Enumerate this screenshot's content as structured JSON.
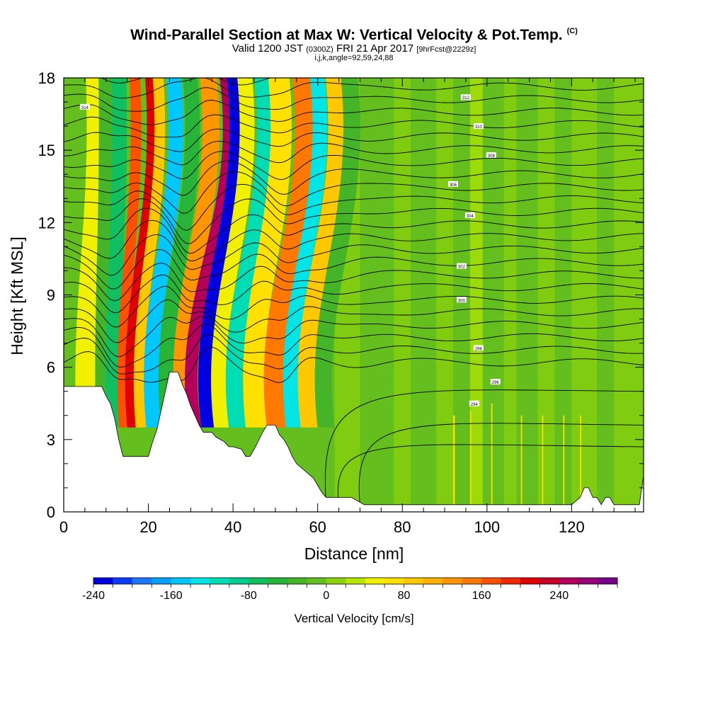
{
  "header": {
    "title": "Wind-Parallel Section at Max W: Vertical Velocity & Pot.Temp.",
    "copyright": "(C)",
    "valid_prefix": "Valid 1200 JST",
    "valid_utc": "(0300Z)",
    "valid_date": "FRI 21 Apr 2017",
    "forecast": "[9hrFcst@2229z]",
    "grid_info": "i,j,k,angle=92,59,24,88"
  },
  "chart_data": {
    "type": "heatmap",
    "title": "Wind-Parallel Section at Max W: Vertical Velocity & Pot.Temp.",
    "xlabel": "Distance [nm]",
    "ylabel": "Height [Kft MSL]",
    "xlim": [
      0,
      137
    ],
    "ylim": [
      0,
      18
    ],
    "x_ticks": [
      "0",
      "20",
      "40",
      "60",
      "80",
      "100",
      "120"
    ],
    "x_tick_values": [
      0,
      20,
      40,
      60,
      80,
      100,
      120
    ],
    "y_ticks": [
      "0",
      "3",
      "6",
      "9",
      "12",
      "15",
      "18"
    ],
    "y_tick_values": [
      0,
      3,
      6,
      9,
      12,
      15,
      18
    ],
    "colorbar": {
      "label": "Vertical Velocity [cm/s]",
      "min": -240,
      "max": 300,
      "step": 20,
      "tick_labels": [
        "-240",
        "-160",
        "-80",
        "0",
        "80",
        "160",
        "240"
      ],
      "tick_values": [
        -240,
        -160,
        -80,
        0,
        80,
        160,
        240
      ],
      "colors": [
        "#0000e0",
        "#0a3cff",
        "#1e78ff",
        "#00a0ff",
        "#00c8ff",
        "#00e6e6",
        "#00dcb4",
        "#00cc90",
        "#10c060",
        "#28b438",
        "#46b428",
        "#64be1e",
        "#8cd20a",
        "#b4e600",
        "#f0f000",
        "#ffe000",
        "#ffc800",
        "#ffb000",
        "#ff9600",
        "#ff7800",
        "#ff5000",
        "#f02800",
        "#e00000",
        "#c80028",
        "#b4005a",
        "#960078",
        "#78008c"
      ]
    },
    "terrain": [
      [
        0,
        5.2
      ],
      [
        5,
        5.2
      ],
      [
        9,
        5.2
      ],
      [
        10,
        4.8
      ],
      [
        11,
        4.5
      ],
      [
        12,
        3.9
      ],
      [
        13,
        3.0
      ],
      [
        14,
        2.3
      ],
      [
        16,
        2.3
      ],
      [
        18,
        2.3
      ],
      [
        20,
        2.3
      ],
      [
        21,
        2.9
      ],
      [
        22,
        3.4
      ],
      [
        23,
        4.2
      ],
      [
        24,
        5.0
      ],
      [
        25,
        5.8
      ],
      [
        27,
        5.8
      ],
      [
        28,
        5.3
      ],
      [
        29,
        4.9
      ],
      [
        30,
        4.4
      ],
      [
        31,
        4.0
      ],
      [
        32,
        3.6
      ],
      [
        33,
        3.3
      ],
      [
        35,
        3.3
      ],
      [
        36,
        3.1
      ],
      [
        38,
        2.9
      ],
      [
        39,
        2.7
      ],
      [
        40,
        2.7
      ],
      [
        42,
        2.6
      ],
      [
        43,
        2.3
      ],
      [
        44,
        2.3
      ],
      [
        45,
        2.6
      ],
      [
        47,
        3.3
      ],
      [
        48,
        3.6
      ],
      [
        50,
        3.6
      ],
      [
        51,
        3.2
      ],
      [
        52,
        3.0
      ],
      [
        53,
        2.7
      ],
      [
        54,
        2.3
      ],
      [
        55,
        2.0
      ],
      [
        57,
        1.7
      ],
      [
        59,
        1.4
      ],
      [
        60,
        1.1
      ],
      [
        61,
        0.8
      ],
      [
        62,
        0.6
      ],
      [
        64,
        0.6
      ],
      [
        68,
        0.6
      ],
      [
        71,
        0.3
      ],
      [
        80,
        0.3
      ],
      [
        100,
        0.3
      ],
      [
        120,
        0.3
      ],
      [
        122,
        0.6
      ],
      [
        123,
        1.0
      ],
      [
        124,
        1.0
      ],
      [
        125,
        0.6
      ],
      [
        126,
        0.6
      ],
      [
        127,
        0.3
      ],
      [
        128,
        0.6
      ],
      [
        129,
        0.6
      ],
      [
        130,
        0.3
      ],
      [
        136,
        0.3
      ],
      [
        137,
        1.5
      ]
    ],
    "w_bands": [
      {
        "x0": 3.0,
        "x1": 9.5,
        "w": 40,
        "h": 120
      },
      {
        "x0": 7.5,
        "x1": 11.0,
        "w": -40,
        "h": 40
      },
      {
        "x0": 10.0,
        "x1": 13.5,
        "w": -80,
        "h": 70
      },
      {
        "x0": 13.0,
        "x1": 15.5,
        "w": 160,
        "h": 140
      },
      {
        "x0": 15.0,
        "x1": 17.5,
        "w": 210,
        "h": 230
      },
      {
        "x0": 17.0,
        "x1": 19.5,
        "w": 80,
        "h": 220
      },
      {
        "x0": 19.5,
        "x1": 23.0,
        "w": -150,
        "h": 260
      },
      {
        "x0": 23.0,
        "x1": 26.5,
        "w": -60,
        "h": 280
      },
      {
        "x0": 26.5,
        "x1": 30.5,
        "w": 120,
        "h": 310
      },
      {
        "x0": 29.5,
        "x1": 32.5,
        "w": 250,
        "h": 400
      },
      {
        "x0": 32.5,
        "x1": 35.5,
        "w": -240,
        "h": 330
      },
      {
        "x0": 35.5,
        "x1": 39.0,
        "w": 40,
        "h": 300
      },
      {
        "x0": 39.0,
        "x1": 43.0,
        "w": -120,
        "h": 330
      },
      {
        "x0": 43.0,
        "x1": 48.0,
        "w": 60,
        "h": 290
      },
      {
        "x0": 48.0,
        "x1": 52.5,
        "w": 150,
        "h": 330
      },
      {
        "x0": 52.5,
        "x1": 56.0,
        "w": -140,
        "h": 310
      },
      {
        "x0": 56.0,
        "x1": 60.0,
        "w": 80,
        "h": 320
      },
      {
        "x0": 60.0,
        "x1": 64.0,
        "w": -40,
        "h": 300
      }
    ],
    "theta_labels": [
      "314",
      "312",
      "310",
      "308",
      "306",
      "304",
      "302",
      "300",
      "298",
      "296",
      "294"
    ]
  }
}
